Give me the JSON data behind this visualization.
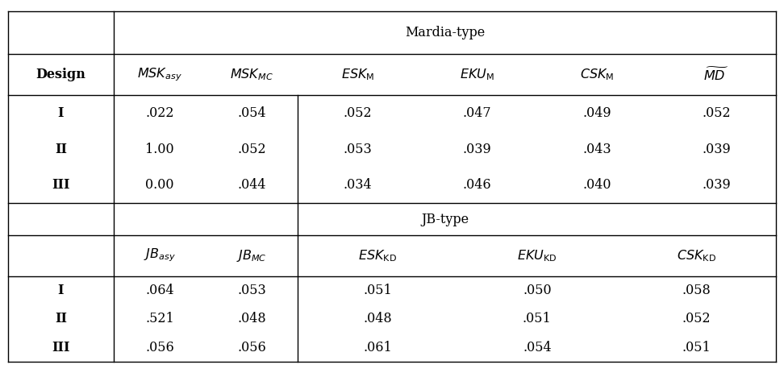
{
  "background_color": "#ffffff",
  "mardia_header": "Mardia-type",
  "jb_header": "JB-type",
  "col1_header": "Design",
  "mardia_rows": [
    [
      "I",
      ".022",
      ".054",
      ".052",
      ".047",
      ".049",
      ".052"
    ],
    [
      "II",
      "1.00",
      ".052",
      ".053",
      ".039",
      ".043",
      ".039"
    ],
    [
      "III",
      "0.00",
      ".044",
      ".034",
      ".046",
      ".040",
      ".039"
    ]
  ],
  "jb_rows": [
    [
      "I",
      ".064",
      ".053",
      ".051",
      ".050",
      ".058"
    ],
    [
      "II",
      ".521",
      ".048",
      ".048",
      ".051",
      ".052"
    ],
    [
      "III",
      ".056",
      ".056",
      ".061",
      ".054",
      ".051"
    ]
  ],
  "line_color": "#000000",
  "line_width": 1.0,
  "base_fontsize": 11.5,
  "header_fontsize": 11.5
}
